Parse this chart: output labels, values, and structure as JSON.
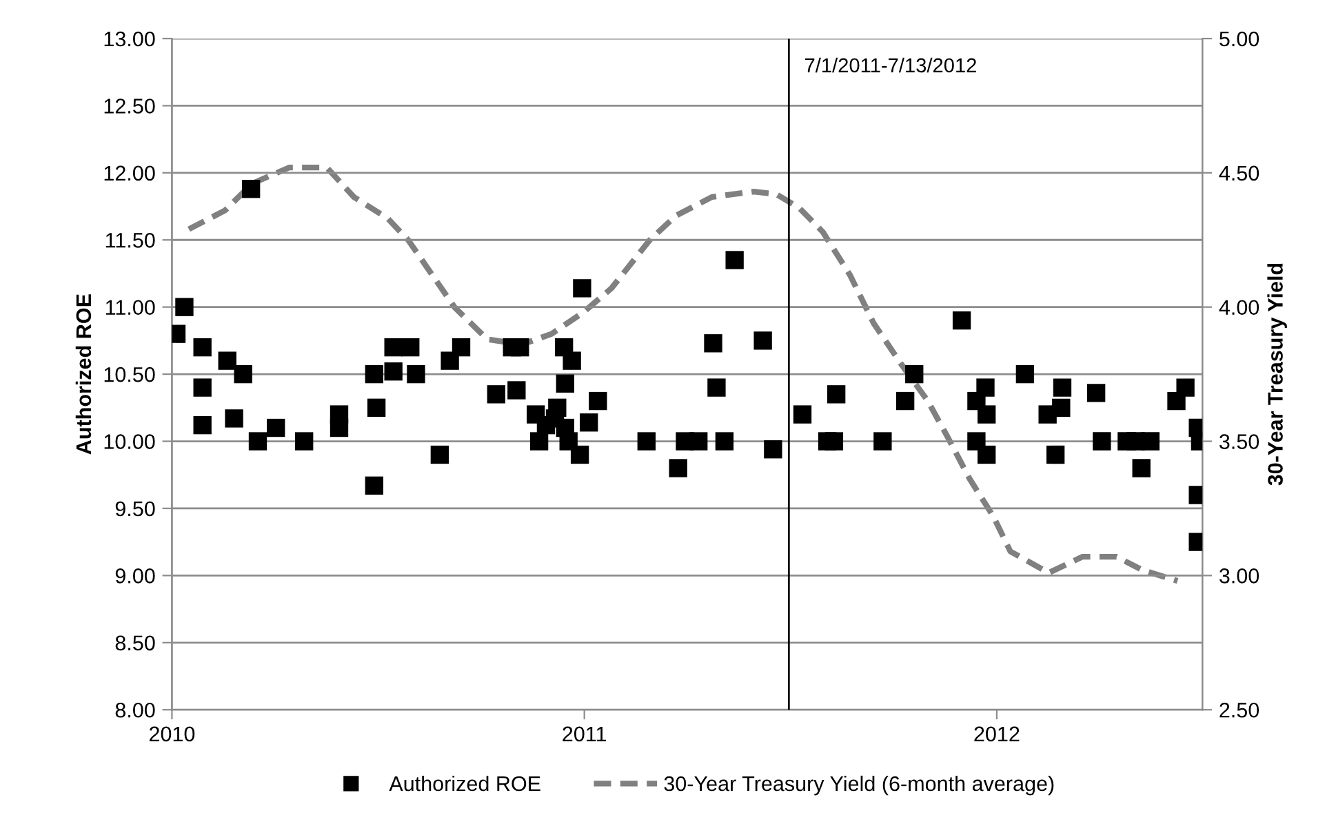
{
  "chart_data": {
    "type": "scatter",
    "xlabel": null,
    "ylabel": "Authorized ROE",
    "y2label": "30-Year Treasury Yield",
    "xlim": [
      "2010-01-01",
      "2012-07-01"
    ],
    "xticks": [
      {
        "value": "2010-01-01",
        "label": "2010"
      },
      {
        "value": "2011-01-01",
        "label": "2011"
      },
      {
        "value": "2012-01-01",
        "label": "2012"
      }
    ],
    "ylim": [
      8,
      13
    ],
    "yticks": [
      {
        "value": 8,
        "label": "8.00"
      },
      {
        "value": 8.5,
        "label": "8.50"
      },
      {
        "value": 9,
        "label": "9.00"
      },
      {
        "value": 9.5,
        "label": "9.50"
      },
      {
        "value": 10,
        "label": "10.00"
      },
      {
        "value": 10.5,
        "label": "10.50"
      },
      {
        "value": 11,
        "label": "11.00"
      },
      {
        "value": 11.5,
        "label": "11.50"
      },
      {
        "value": 12,
        "label": "12.00"
      },
      {
        "value": 12.5,
        "label": "12.50"
      },
      {
        "value": 13,
        "label": "13.00"
      }
    ],
    "y2lim": [
      2.5,
      5
    ],
    "y2ticks": [
      {
        "value": 2.5,
        "label": "2.50"
      },
      {
        "value": 3,
        "label": "3.00"
      },
      {
        "value": 3.5,
        "label": "3.50"
      },
      {
        "value": 4,
        "label": "4.00"
      },
      {
        "value": 4.5,
        "label": "4.50"
      },
      {
        "value": 5,
        "label": "5.00"
      }
    ],
    "grid": "y",
    "legend": "bottom",
    "ref_lines": [
      {
        "axis": "x",
        "value": "2011-07-01",
        "label": "7/1/2011-7/13/2012",
        "color": "#000000",
        "line_style": "solid"
      }
    ],
    "series": [
      {
        "name": "Authorized ROE",
        "marker": "square",
        "color": "#000000",
        "x": [
          "2010-01-05",
          "2010-01-12",
          "2010-01-28",
          "2010-01-28",
          "2010-01-28",
          "2010-02-19",
          "2010-02-25",
          "2010-03-05",
          "2010-03-12",
          "2010-03-18",
          "2010-04-03",
          "2010-04-28",
          "2010-05-29",
          "2010-05-29",
          "2010-06-29",
          "2010-06-29",
          "2010-07-01",
          "2010-07-16",
          "2010-07-16",
          "2010-07-31",
          "2010-08-05",
          "2010-08-26",
          "2010-09-04",
          "2010-09-14",
          "2010-10-15",
          "2010-10-29",
          "2010-11-05",
          "2010-11-02",
          "2010-11-19",
          "2010-11-22",
          "2010-11-28",
          "2010-12-06",
          "2010-12-08",
          "2010-12-14",
          "2010-12-21",
          "2010-12-15",
          "2010-12-15",
          "2010-12-18",
          "2010-12-28",
          "2010-12-30",
          "2011-01-13",
          "2011-01-05",
          "2011-02-25",
          "2011-03-25",
          "2011-03-31",
          "2011-04-12",
          "2011-04-25",
          "2011-04-28",
          "2011-05-05",
          "2011-05-14",
          "2011-06-08",
          "2011-06-17",
          "2011-07-13",
          "2011-08-04",
          "2011-08-10",
          "2011-08-12",
          "2011-09-22",
          "2011-10-12",
          "2011-10-20",
          "2011-12-01",
          "2011-12-14",
          "2011-12-22",
          "2011-12-23",
          "2011-12-14",
          "2011-12-23",
          "2012-01-26",
          "2012-02-15",
          "2012-02-27",
          "2012-02-28",
          "2012-02-22",
          "2012-03-29",
          "2012-04-03",
          "2012-04-25",
          "2012-05-03",
          "2012-05-16",
          "2012-05-08",
          "2012-06-08",
          "2012-06-16",
          "2012-06-27",
          "2012-06-29",
          "2012-06-27",
          "2012-06-27"
        ],
        "values": [
          10.8,
          11.0,
          10.7,
          10.4,
          10.12,
          10.6,
          10.17,
          10.5,
          11.88,
          10.0,
          10.1,
          10.0,
          10.2,
          10.1,
          10.5,
          9.67,
          10.25,
          10.52,
          10.7,
          10.7,
          10.5,
          9.9,
          10.6,
          10.7,
          10.35,
          10.7,
          10.7,
          10.38,
          10.2,
          10.0,
          10.12,
          10.17,
          10.25,
          10.7,
          10.6,
          10.43,
          10.1,
          10.0,
          9.9,
          11.14,
          10.3,
          10.14,
          10.0,
          9.8,
          10.0,
          10.0,
          10.73,
          10.4,
          10.0,
          11.35,
          10.75,
          9.94,
          10.2,
          10.0,
          10.0,
          10.35,
          10.0,
          10.3,
          10.5,
          10.9,
          10.3,
          10.4,
          10.2,
          10.0,
          9.9,
          10.5,
          10.2,
          10.25,
          10.4,
          9.9,
          10.36,
          10.0,
          10.0,
          10.0,
          10.0,
          9.8,
          10.3,
          10.4,
          10.1,
          10.0,
          9.6,
          9.25
        ]
      },
      {
        "name": "30-Year Treasury Yield (6-month average)",
        "type": "line",
        "axis": "y2",
        "marker": "none",
        "line_style": "dashed",
        "color": "#808080",
        "x": [
          "2010-01-16",
          "2010-02-17",
          "2010-03-13",
          "2010-04-15",
          "2010-05-18",
          "2010-06-11",
          "2010-07-11",
          "2010-07-29",
          "2010-09-08",
          "2010-10-07",
          "2010-10-23",
          "2010-11-13",
          "2010-12-03",
          "2010-12-31",
          "2011-01-25",
          "2011-02-28",
          "2011-03-23",
          "2011-04-24",
          "2011-05-31",
          "2011-06-20",
          "2011-07-10",
          "2011-07-31",
          "2011-08-24",
          "2011-09-14",
          "2011-10-08",
          "2011-11-01",
          "2011-11-18",
          "2011-12-08",
          "2011-12-29",
          "2012-01-13",
          "2012-02-16",
          "2012-03-17",
          "2012-04-16",
          "2012-05-09",
          "2012-06-09"
        ],
        "values": [
          4.29,
          4.36,
          4.46,
          4.52,
          4.52,
          4.41,
          4.33,
          4.25,
          4.0,
          3.88,
          3.87,
          3.87,
          3.9,
          3.98,
          4.07,
          4.25,
          4.34,
          4.41,
          4.43,
          4.42,
          4.37,
          4.28,
          4.12,
          3.94,
          3.79,
          3.65,
          3.52,
          3.36,
          3.22,
          3.09,
          3.01,
          3.07,
          3.07,
          3.02,
          2.98
        ]
      }
    ]
  }
}
